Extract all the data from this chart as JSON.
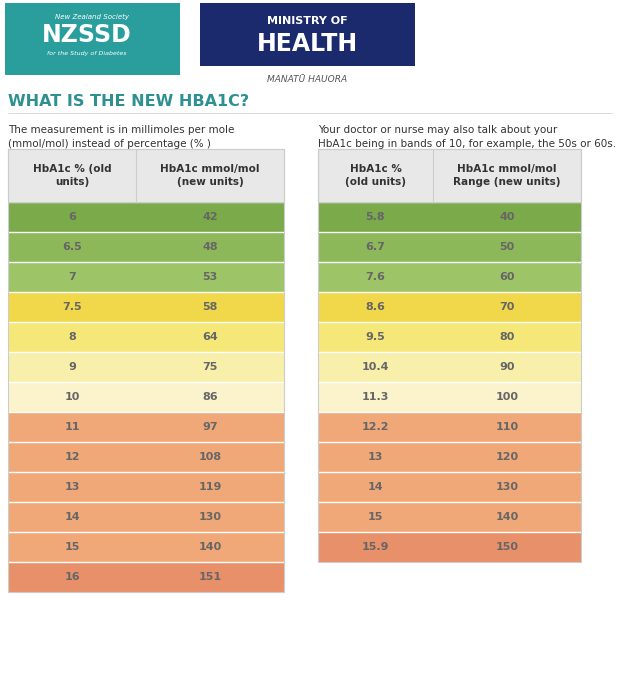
{
  "title": "WHAT IS THE NEW HBA1C?",
  "title_color": "#2E9090",
  "left_desc": "The measurement is in millimoles per mole\n(mmol/mol) instead of percentage (% )",
  "right_desc": "Your doctor or nurse may also talk about your\nHbA1c being in bands of 10, for example, the 50s or 60s.",
  "table1_headers": [
    "HbA1c % (old\nunits)",
    "HbA1c mmol/mol\n(new units)"
  ],
  "table1_data": [
    [
      "6",
      "42"
    ],
    [
      "6.5",
      "48"
    ],
    [
      "7",
      "53"
    ],
    [
      "7.5",
      "58"
    ],
    [
      "8",
      "64"
    ],
    [
      "9",
      "75"
    ],
    [
      "10",
      "86"
    ],
    [
      "11",
      "97"
    ],
    [
      "12",
      "108"
    ],
    [
      "13",
      "119"
    ],
    [
      "14",
      "130"
    ],
    [
      "15",
      "140"
    ],
    [
      "16",
      "151"
    ]
  ],
  "table1_colors": [
    "#7aaa4a",
    "#8db85a",
    "#9ec468",
    "#f0d84a",
    "#f5e878",
    "#f7efaa",
    "#faf3cc",
    "#f0a878",
    "#f0a878",
    "#f0a878",
    "#f0a878",
    "#f0a878",
    "#e8906a"
  ],
  "table2_headers": [
    "HbA1c %\n(old units)",
    "HbA1c mmol/mol\nRange (new units)"
  ],
  "table2_data": [
    [
      "5.8",
      "40"
    ],
    [
      "6.7",
      "50"
    ],
    [
      "7.6",
      "60"
    ],
    [
      "8.6",
      "70"
    ],
    [
      "9.5",
      "80"
    ],
    [
      "10.4",
      "90"
    ],
    [
      "11.3",
      "100"
    ],
    [
      "12.2",
      "110"
    ],
    [
      "13",
      "120"
    ],
    [
      "14",
      "130"
    ],
    [
      "15",
      "140"
    ],
    [
      "15.9",
      "150"
    ]
  ],
  "table2_colors": [
    "#7aaa4a",
    "#8db85a",
    "#9ec468",
    "#f0d84a",
    "#f5e878",
    "#f7efaa",
    "#faf3cc",
    "#f0a878",
    "#f0a878",
    "#f0a878",
    "#f0a878",
    "#e8906a"
  ],
  "header_bg": "#e8e8e8",
  "header_text_color": "#333333",
  "cell_text_color": "#666666",
  "border_color": "#cccccc",
  "bg_color": "#ffffff",
  "left_logo_color": "#2a9d9d",
  "right_logo_color": "#1a2a6c",
  "logo_text_color": "#ffffff",
  "manatu_color": "#555555"
}
